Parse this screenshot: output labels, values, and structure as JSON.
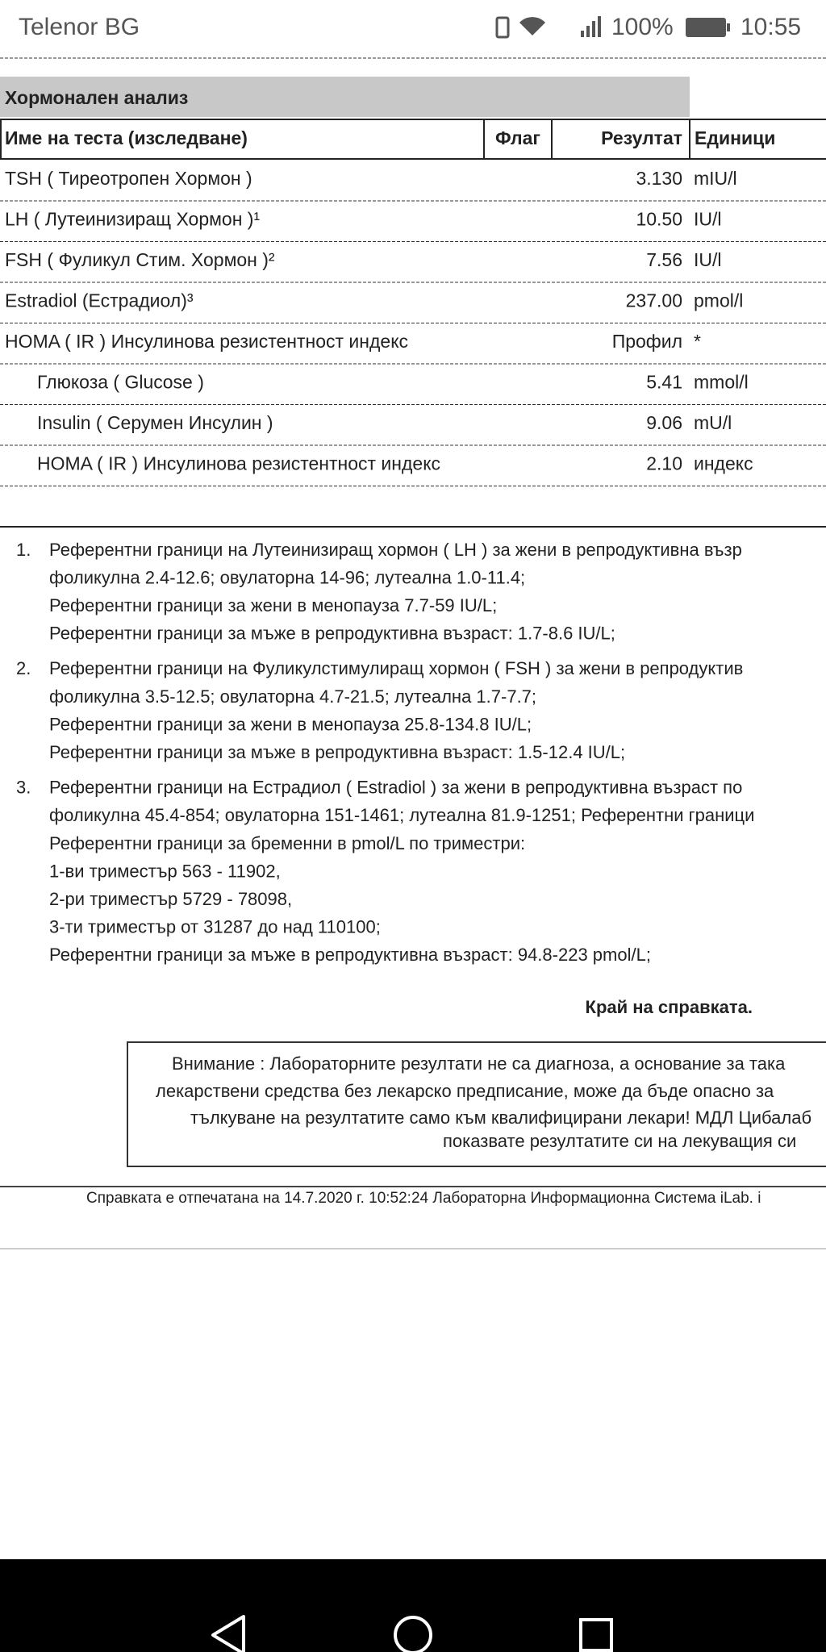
{
  "status_bar": {
    "carrier": "Telenor BG",
    "battery": "100%",
    "time": "10:55"
  },
  "section_title": "Хормонален анализ",
  "table": {
    "headers": [
      "Име на теста (изследване)",
      "Флаг",
      "Резултат",
      "Единици"
    ],
    "rows": [
      {
        "name": "TSH ( Тиреотропен Хормон )",
        "result": "3.130",
        "unit": "mIU/l"
      },
      {
        "name": "LH ( Лутеинизиращ Хормон )¹",
        "result": "10.50",
        "unit": "IU/l"
      },
      {
        "name": "FSH ( Фуликул Стим. Хормон )²",
        "result": "7.56",
        "unit": "IU/l"
      },
      {
        "name": "Estradiol (Естрадиол)³",
        "result": "237.00",
        "unit": "pmol/l"
      },
      {
        "name": "HOMA ( IR ) Инсулинова резистентност индекс",
        "result": "Профил",
        "unit": "*",
        "sub_rows": [
          {
            "name": "Глюкоза ( Glucose )",
            "result": "5.41",
            "unit": "mmol/l"
          },
          {
            "name": "Insulin ( Серумен Инсулин )",
            "result": "9.06",
            "unit": "mU/l"
          },
          {
            "name": "HOMA ( IR ) Инсулинова резистентност индекс",
            "result": "2.10",
            "unit": "индекс"
          }
        ]
      }
    ]
  },
  "footnotes": [
    {
      "number": "1.",
      "lines": [
        "Референтни граници на Лутеинизиращ хормон ( LH ) за жени в репродуктивна възр",
        "фоликулна 2.4-12.6; овулаторна 14-96; лутеална 1.0-11.4;",
        "Референтни граници за жени в менопауза 7.7-59 IU/L;",
        "Референтни граници за мъже в репродуктивна възраст: 1.7-8.6 IU/L;"
      ]
    },
    {
      "number": "2.",
      "lines": [
        "Референтни граници на Фуликулстимулиращ хормон ( FSH ) за жени в репродуктив",
        "фоликулна 3.5-12.5; овулаторна 4.7-21.5; лутеална 1.7-7.7;",
        "Референтни граници за жени в менопауза 25.8-134.8 IU/L;",
        "Референтни граници за мъже в репродуктивна възраст: 1.5-12.4 IU/L;"
      ]
    },
    {
      "number": "3.",
      "lines": [
        "Референтни граници на Естрадиол ( Estradiol ) за жени в репродуктивна възраст по",
        "фоликулна 45.4-854; овулаторна 151-1461; лутеална 81.9-1251; Референтни граници",
        "Референтни граници за бременни в pmol/L по триместри:",
        "1-ви триместър 563 - 11902,",
        "2-ри триместър 5729 - 78098,",
        "3-ти триместър от 31287 до над 110100;",
        "Референтни граници за мъже в репродуктивна възраст: 94.8-223 pmol/L;"
      ]
    }
  ],
  "end_text": "Край на справката.",
  "warning": [
    "Внимание : Лабораторните резултати не са диагноза, а основание за така",
    "лекарствени средства без лекарско предписание, може да бъде опасно за",
    "тълкуване на резултатите само към квалифицирани лекари! МДЛ Цибалаб",
    "показвате резултатите си на лекуващия си"
  ],
  "footer": "Справката е отпечатана на 14.7.2020 г. 10:52:24 Лабораторна Информационна Система iLab. i"
}
